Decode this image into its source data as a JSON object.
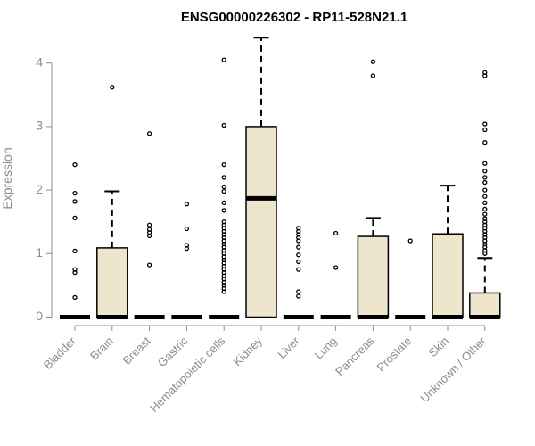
{
  "chart_data": {
    "type": "box",
    "title": "ENSG00000226302 - RP11-528N21.1",
    "xlabel": "",
    "ylabel": "Expression",
    "ylim": [
      0,
      4.4
    ],
    "yticks": [
      0,
      1,
      2,
      3,
      4
    ],
    "box_fill": "#ede6cc",
    "categories": [
      "Bladder",
      "Brain",
      "Breast",
      "Gastric",
      "Hematopoietic cells",
      "Kidney",
      "Liver",
      "Lung",
      "Pancreas",
      "Prostate",
      "Skin",
      "Unknown / Other"
    ],
    "boxes": [
      {
        "category": "Bladder",
        "q1": 0,
        "median": 0,
        "q3": 0,
        "whisker_low": 0,
        "whisker_high": 0,
        "outliers": [
          0.31,
          0.7,
          0.75,
          1.04,
          1.56,
          1.82,
          1.95,
          2.4
        ]
      },
      {
        "category": "Brain",
        "q1": 0,
        "median": 0,
        "q3": 1.09,
        "whisker_low": 0,
        "whisker_high": 1.98,
        "outliers": [
          3.62
        ]
      },
      {
        "category": "Breast",
        "q1": 0,
        "median": 0,
        "q3": 0,
        "whisker_low": 0,
        "whisker_high": 0,
        "outliers": [
          0.82,
          1.28,
          1.33,
          1.38,
          1.45,
          2.89
        ]
      },
      {
        "category": "Gastric",
        "q1": 0,
        "median": 0,
        "q3": 0,
        "whisker_low": 0,
        "whisker_high": 0,
        "outliers": [
          1.08,
          1.13,
          1.39,
          1.78
        ]
      },
      {
        "category": "Hematopoietic cells",
        "q1": 0,
        "median": 0,
        "q3": 0,
        "whisker_low": 0,
        "whisker_high": 0,
        "outliers": [
          0.4,
          0.45,
          0.5,
          0.55,
          0.6,
          0.65,
          0.7,
          0.75,
          0.8,
          0.85,
          0.9,
          0.95,
          1.0,
          1.05,
          1.1,
          1.15,
          1.2,
          1.25,
          1.3,
          1.35,
          1.4,
          1.45,
          1.5,
          1.68,
          1.8,
          1.98,
          2.05,
          2.2,
          2.4,
          3.02,
          4.05
        ]
      },
      {
        "category": "Kidney",
        "q1": 0,
        "median": 1.87,
        "q3": 3.0,
        "whisker_low": 0,
        "whisker_high": 4.4,
        "outliers": []
      },
      {
        "category": "Liver",
        "q1": 0,
        "median": 0,
        "q3": 0,
        "whisker_low": 0,
        "whisker_high": 0,
        "outliers": [
          0.33,
          0.4,
          0.75,
          0.87,
          0.98,
          1.1,
          1.2,
          1.25,
          1.3,
          1.35,
          1.4
        ]
      },
      {
        "category": "Lung",
        "q1": 0,
        "median": 0,
        "q3": 0,
        "whisker_low": 0,
        "whisker_high": 0,
        "outliers": [
          0.78,
          1.32
        ]
      },
      {
        "category": "Pancreas",
        "q1": 0,
        "median": 0,
        "q3": 1.27,
        "whisker_low": 0,
        "whisker_high": 1.56,
        "outliers": [
          3.8,
          4.02
        ]
      },
      {
        "category": "Prostate",
        "q1": 0,
        "median": 0,
        "q3": 0,
        "whisker_low": 0,
        "whisker_high": 0,
        "outliers": [
          1.2
        ]
      },
      {
        "category": "Skin",
        "q1": 0,
        "median": 0,
        "q3": 1.31,
        "whisker_low": 0,
        "whisker_high": 2.07,
        "outliers": []
      },
      {
        "category": "Unknown / Other",
        "q1": 0,
        "median": 0,
        "q3": 0.38,
        "whisker_low": 0,
        "whisker_high": 0.93,
        "outliers": [
          1.0,
          1.05,
          1.1,
          1.15,
          1.2,
          1.25,
          1.3,
          1.35,
          1.4,
          1.45,
          1.5,
          1.55,
          1.62,
          1.7,
          1.8,
          1.9,
          2.0,
          2.12,
          2.2,
          2.3,
          2.42,
          2.75,
          2.95,
          3.04,
          3.8,
          3.85
        ]
      }
    ]
  }
}
